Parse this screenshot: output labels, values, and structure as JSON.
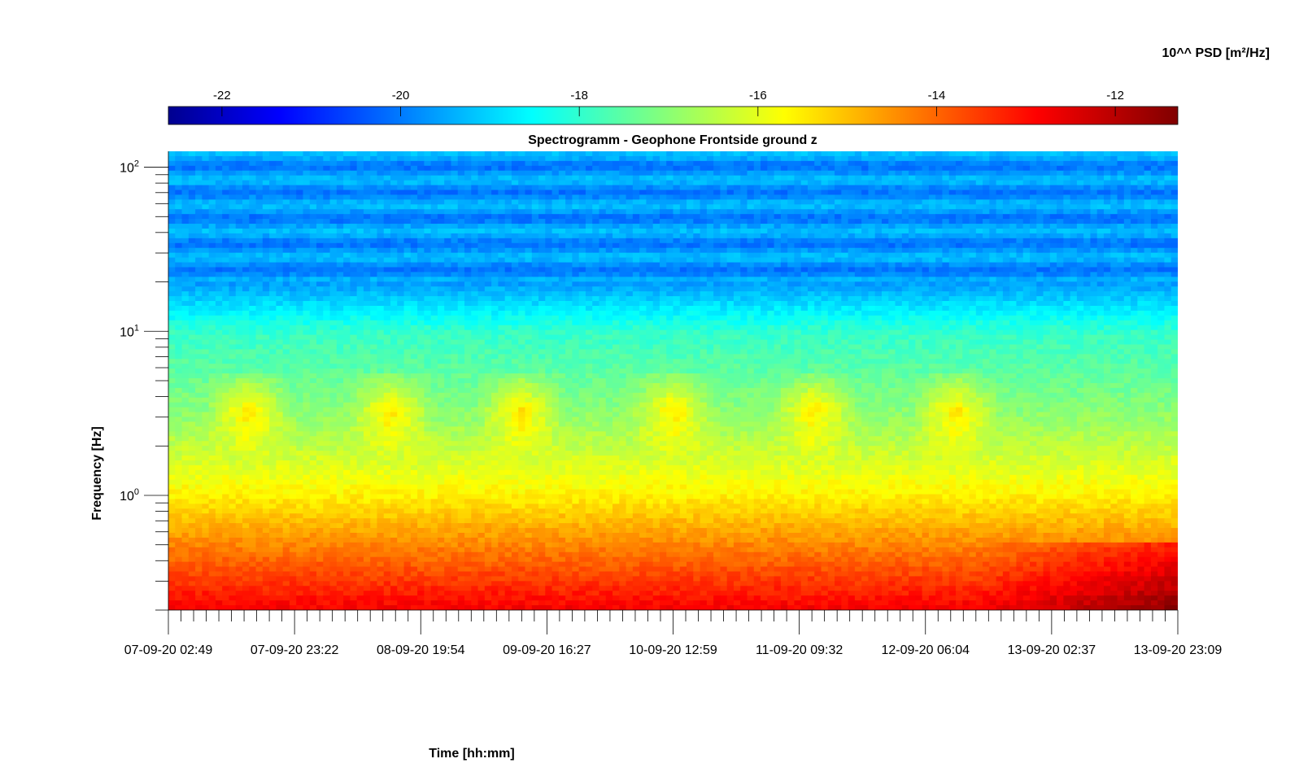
{
  "chart_data": {
    "type": "heatmap",
    "title": "Spectrogramm - Geophone Frontside ground z",
    "xlabel": "Time [hh:mm]",
    "ylabel": "Frequency [Hz]",
    "x_tick_labels": [
      "07-09-20 02:49",
      "07-09-20 23:22",
      "08-09-20 19:54",
      "09-09-20 16:27",
      "10-09-20 12:59",
      "11-09-20 09:32",
      "12-09-20 06:04",
      "13-09-20 02:37",
      "13-09-20 23:09"
    ],
    "y_scale": "log",
    "y_tick_values": [
      1,
      10,
      100
    ],
    "y_tick_labels": [
      {
        "base": "10",
        "exp": "0"
      },
      {
        "base": "10",
        "exp": "1"
      },
      {
        "base": "10",
        "exp": "2"
      }
    ],
    "ylim": [
      0.2,
      125
    ],
    "colorbar": {
      "label": "10^^ PSD [m²/Hz]",
      "range": [
        -22.6,
        -11.3
      ],
      "tick_values": [
        -22,
        -20,
        -18,
        -16,
        -14,
        -12
      ],
      "tick_labels": [
        "-22",
        "-20",
        "-18",
        "-16",
        "-14",
        "-12"
      ],
      "colormap": "jet",
      "placement": "top"
    },
    "field_description": [
      {
        "freq_range_hz": [
          20,
          125
        ],
        "log10_psd": -19.5
      },
      {
        "freq_range_hz": [
          10,
          20
        ],
        "log10_psd": -18.3
      },
      {
        "freq_range_hz": [
          3,
          10
        ],
        "log10_psd": -17.0
      },
      {
        "freq_range_hz": [
          1,
          3
        ],
        "log10_psd": -15.8
      },
      {
        "freq_range_hz": [
          0.5,
          1
        ],
        "log10_psd": -15.0
      },
      {
        "freq_range_hz": [
          0.2,
          0.5
        ],
        "log10_psd": -13.2
      }
    ]
  }
}
